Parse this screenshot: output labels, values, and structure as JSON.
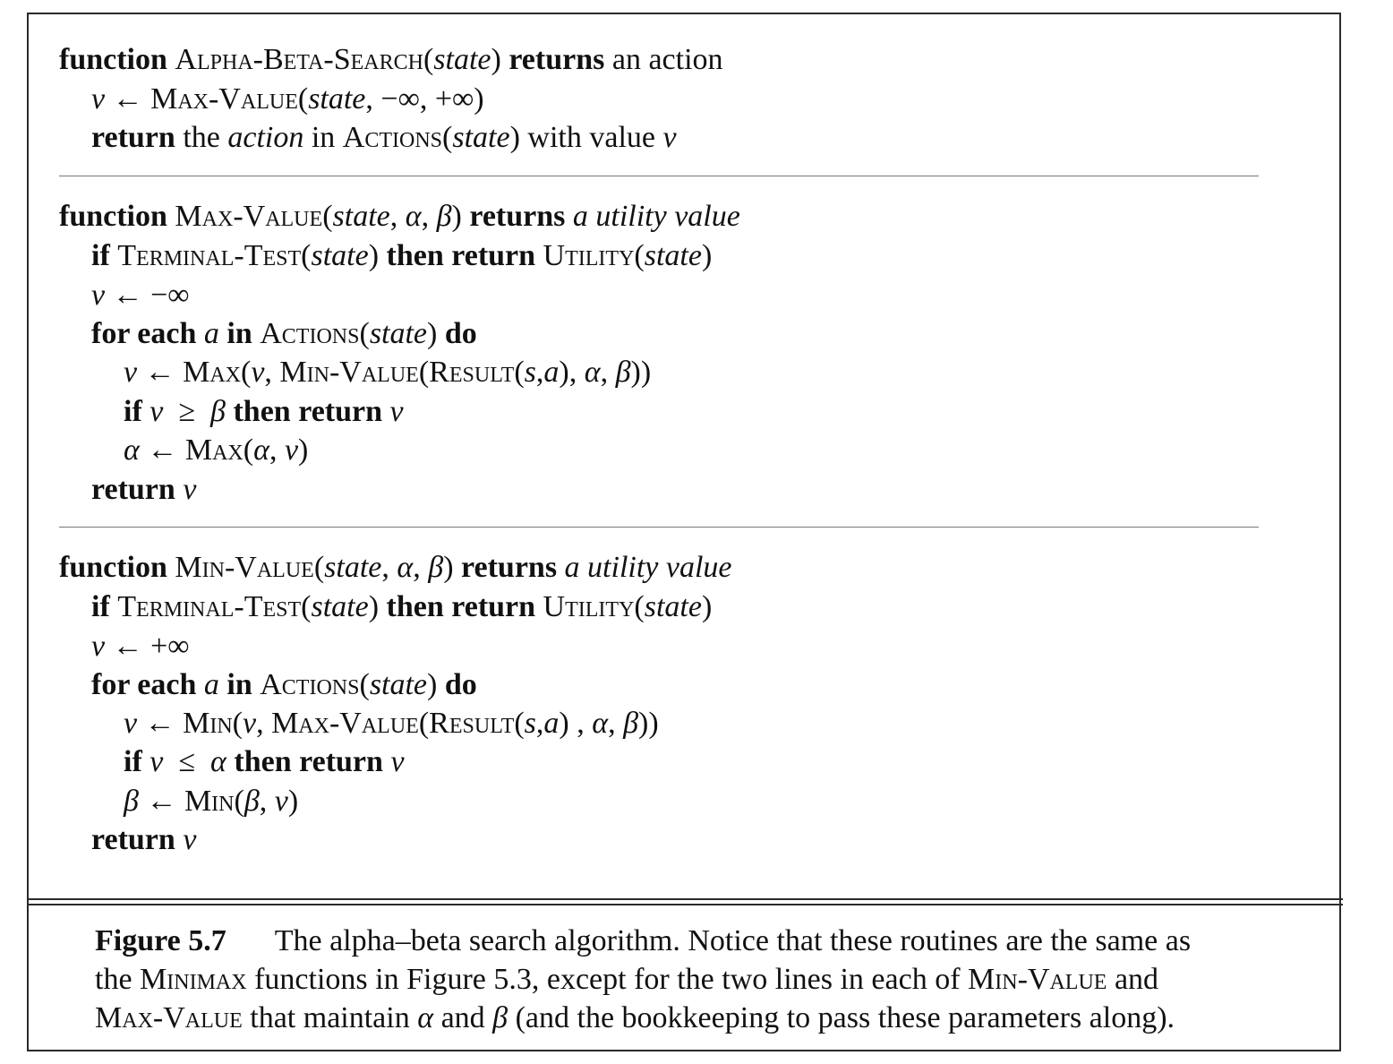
{
  "algorithm": {
    "alphabeta": {
      "l1": [
        "function",
        "Alpha-Beta-Search",
        "(",
        "state",
        ")",
        "returns",
        "an action"
      ],
      "l2": [
        "v",
        "←",
        "Max-Value",
        "(",
        "state",
        ", −∞, +∞)"
      ],
      "l3": [
        "return",
        "the",
        "action",
        "in",
        "Actions",
        "(",
        "state",
        ") with value",
        "v"
      ]
    },
    "maxvalue": {
      "l1": [
        "function",
        "Max-Value",
        "(",
        "state",
        ", ",
        "α",
        ", ",
        "β",
        ")",
        "returns",
        "a utility value"
      ],
      "l2": [
        "if",
        "Terminal-Test",
        "(",
        "state",
        ")",
        "then return",
        "Utility",
        "(",
        "state",
        ")"
      ],
      "l3": [
        "v",
        "← −∞"
      ],
      "l4": [
        "for each",
        "a",
        "in",
        "Actions",
        "(",
        "state",
        ")",
        "do"
      ],
      "l5": [
        "v",
        "←",
        "Max",
        "(",
        "v",
        ", ",
        "Min-Value",
        "(",
        "Result",
        "(",
        "s",
        ",",
        "a",
        "), ",
        "α",
        ", ",
        "β",
        "))"
      ],
      "l6": [
        "if",
        "v",
        "≥",
        "β",
        "then return",
        "v"
      ],
      "l7": [
        "α",
        "←",
        "Max",
        "(",
        "α",
        ", ",
        "v",
        ")"
      ],
      "l8": [
        "return",
        "v"
      ]
    },
    "minvalue": {
      "l1": [
        "function",
        "Min-Value",
        "(",
        "state",
        ", ",
        "α",
        ", ",
        "β",
        ")",
        "returns",
        "a utility value"
      ],
      "l2": [
        "if",
        "Terminal-Test",
        "(",
        "state",
        ")",
        "then return",
        "Utility",
        "(",
        "state",
        ")"
      ],
      "l3": [
        "v",
        "← +∞"
      ],
      "l4": [
        "for each",
        "a",
        "in",
        "Actions",
        "(",
        "state",
        ")",
        "do"
      ],
      "l5": [
        "v",
        "←",
        "Min",
        "(",
        "v",
        ", ",
        "Max-Value",
        "(",
        "Result",
        "(",
        "s",
        ",",
        "a",
        ") , ",
        "α",
        ", ",
        "β",
        "))"
      ],
      "l6": [
        "if",
        "v",
        "≤",
        "α",
        "then return",
        "v"
      ],
      "l7": [
        "β",
        "←",
        "Min",
        "(",
        "β",
        ", ",
        "v",
        ")"
      ],
      "l8": [
        "return",
        "v"
      ]
    }
  },
  "caption": {
    "label": "Figure 5.7",
    "l1": "The alpha–beta search algorithm.  Notice that these routines are the same as",
    "l2a": "the ",
    "l2b": "Minimax",
    "l2c": " functions in Figure 5.3, except for the two lines in each of ",
    "l2d": "Min-Value",
    "l2e": " and",
    "l3a": "Max-Value",
    "l3b": " that maintain ",
    "l3c": "α",
    "l3d": " and ",
    "l3e": "β",
    "l3f": " (and the bookkeeping to pass these parameters along)."
  }
}
